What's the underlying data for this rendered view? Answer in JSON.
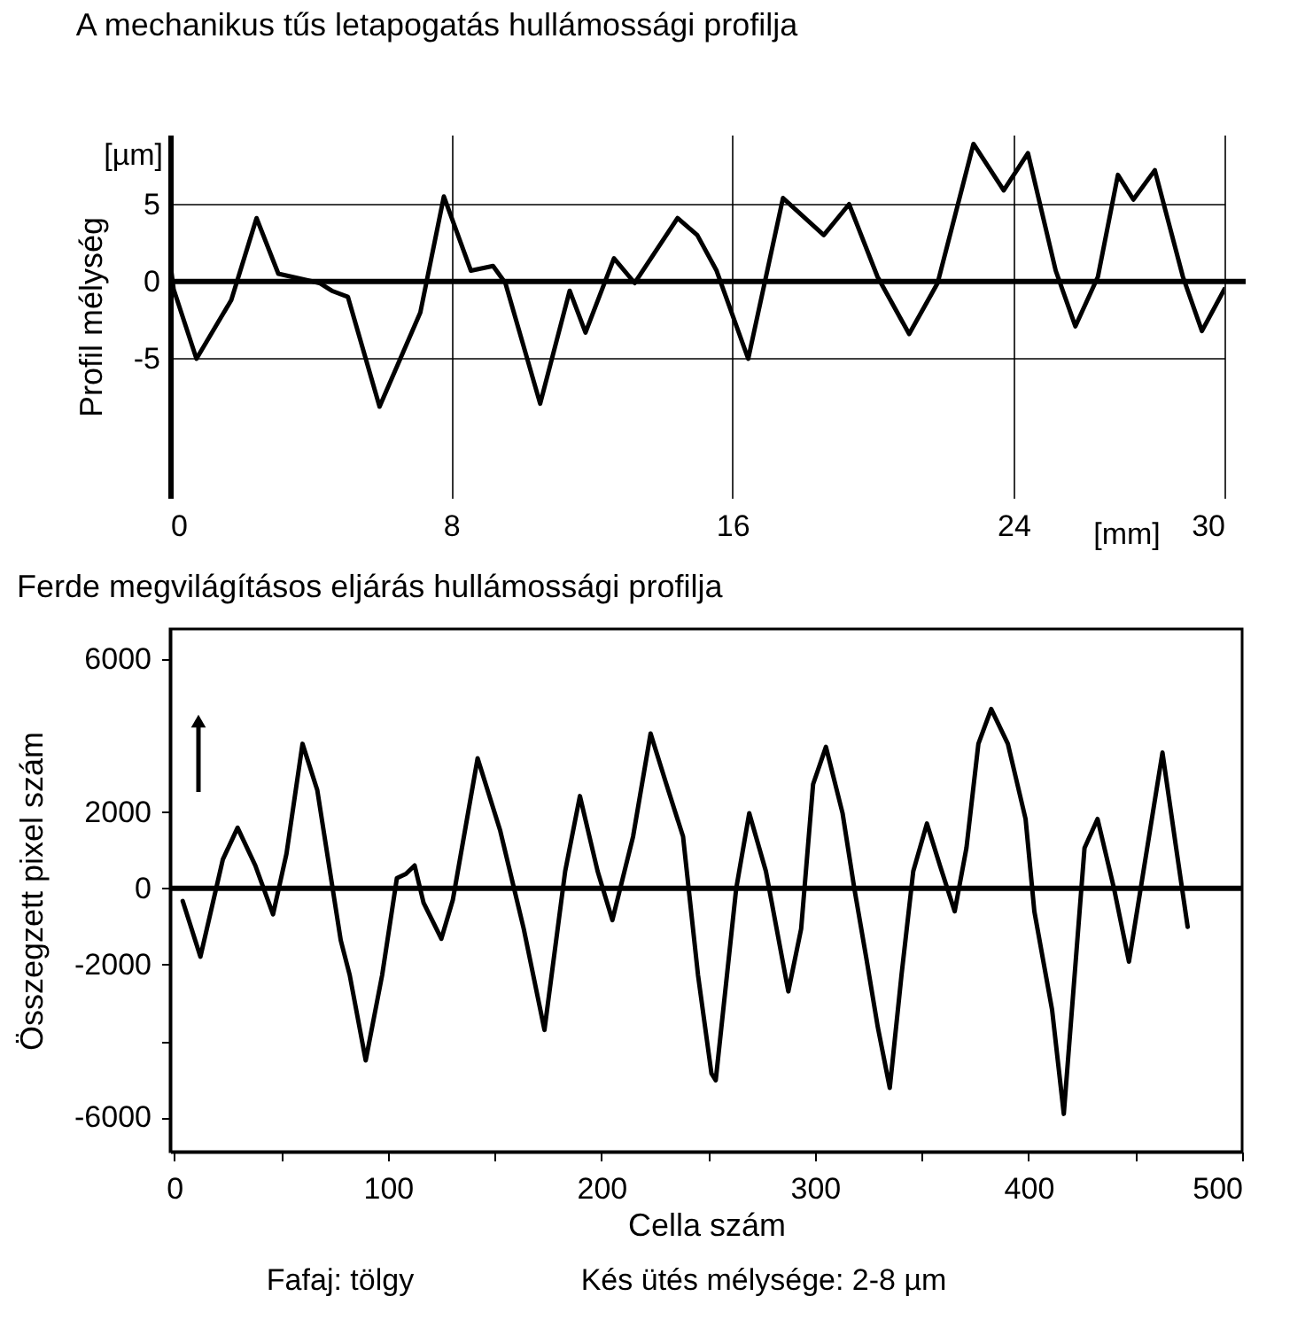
{
  "chart_data": [
    {
      "type": "line",
      "title": "A mechanikus tűs letapogatás hullámossági profilja",
      "ylabel": "Profil mélység",
      "xlim": [
        0,
        30
      ],
      "ylim": [
        -14,
        9.5
      ],
      "xticks": [
        0,
        8,
        16,
        24,
        30
      ],
      "yticks": [
        -5,
        0,
        5
      ],
      "grid": true,
      "marker": "none",
      "line_style": "solid",
      "ref_lines": [
        {
          "axis": "y",
          "value": 0,
          "color": "#000000"
        }
      ],
      "annotations": [
        "[µm]",
        "[mm]"
      ],
      "series": [
        {
          "color": "#000000",
          "x": [
            0,
            0.1,
            0.75,
            1.74,
            2.46,
            3.08,
            4.25,
            4.6,
            5.06,
            5.96,
            7.12,
            7.79,
            8.56,
            9.19,
            9.54,
            10.53,
            11.37,
            11.82,
            12.63,
            13.22,
            14.44,
            15.0,
            15.55,
            16.45,
            17.44,
            18.6,
            19.32,
            20.13,
            21.03,
            21.84,
            22.86,
            23.72,
            24.41,
            25.2,
            25.76,
            26.4,
            26.97,
            27.41,
            28.02,
            28.82,
            29.36,
            30.0
          ],
          "values": [
            1.3,
            -0.5,
            -5.0,
            -1.2,
            4.1,
            0.5,
            -0.1,
            -0.6,
            -1.0,
            -8.1,
            -2.0,
            5.5,
            0.7,
            1.0,
            -0.1,
            -7.9,
            -0.6,
            -3.3,
            1.5,
            -0.1,
            4.1,
            3.0,
            0.7,
            -5.0,
            5.4,
            3.0,
            5.0,
            0.3,
            -3.4,
            -0.1,
            8.9,
            5.9,
            8.3,
            0.7,
            -2.9,
            0.3,
            6.9,
            5.3,
            7.2,
            0.3,
            -3.2,
            -0.5
          ]
        }
      ]
    },
    {
      "type": "line",
      "title": "Ferde megvilágításos eljárás hullámossági profilja",
      "xlabel": "Cella szám",
      "ylabel": "Összegzett pixel szám",
      "xlim": [
        -2,
        500
      ],
      "ylim": [
        -6900,
        6800
      ],
      "xticks": [
        0,
        {
          "value": 50,
          "label": null
        },
        100,
        {
          "value": 150,
          "label": null
        },
        200,
        {
          "value": 250,
          "label": null
        },
        300,
        {
          "value": 350,
          "label": null
        },
        400,
        {
          "value": 450,
          "label": null
        },
        500
      ],
      "yticks": [
        -6000,
        {
          "value": -4000,
          "label": null
        },
        -2000,
        0,
        2000,
        6000
      ],
      "grid": false,
      "marker": "none",
      "line_style": "solid",
      "ref_lines": [
        {
          "axis": "y",
          "value": 0,
          "color": "#000000"
        }
      ],
      "annotations": [
        "Fafaj: tölgy",
        "Kés ütés mélysége: 2-8 µm"
      ],
      "series": [
        {
          "color": "#000000",
          "x": [
            3.9,
            12.2,
            22.7,
            29.6,
            37.9,
            46.2,
            52.5,
            60,
            66.9,
            77.9,
            82.1,
            89.6,
            97.3,
            104.2,
            108.4,
            112.5,
            116.7,
            125,
            130.4,
            142,
            152.6,
            163.6,
            173.3,
            183,
            189.9,
            198.2,
            205.1,
            214.8,
            223,
            230,
            238.2,
            245.2,
            251.5,
            253.5,
            263.1,
            269.2,
            277,
            287.5,
            293.5,
            299.1,
            305.1,
            312.9,
            318.4,
            324,
            329.4,
            335,
            340.5,
            346,
            352.4,
            358.5,
            365.4,
            370.9,
            376.5,
            382.5,
            390.3,
            398.6,
            402.7,
            411,
            416.5,
            426.2,
            432.3,
            440,
            447,
            453.8,
            462.7,
            469.1,
            474.5
          ],
          "values": [
            -330,
            -1790,
            760,
            1590,
            600,
            -680,
            910,
            3790,
            2580,
            -1360,
            -2270,
            -4510,
            -2270,
            270,
            380,
            600,
            -380,
            -1320,
            -300,
            3410,
            1510,
            -1060,
            -3710,
            450,
            2420,
            450,
            -830,
            1360,
            4060,
            2800,
            1360,
            -2270,
            -4850,
            -5030,
            0,
            1970,
            450,
            -2700,
            -1060,
            2730,
            3710,
            1970,
            0,
            -1820,
            -3640,
            -5230,
            -2270,
            450,
            1700,
            600,
            -600,
            1060,
            3790,
            4700,
            3790,
            1820,
            -600,
            -3180,
            -5910,
            1060,
            1820,
            0,
            -1920,
            450,
            3560,
            1060,
            -1010
          ]
        }
      ]
    }
  ]
}
